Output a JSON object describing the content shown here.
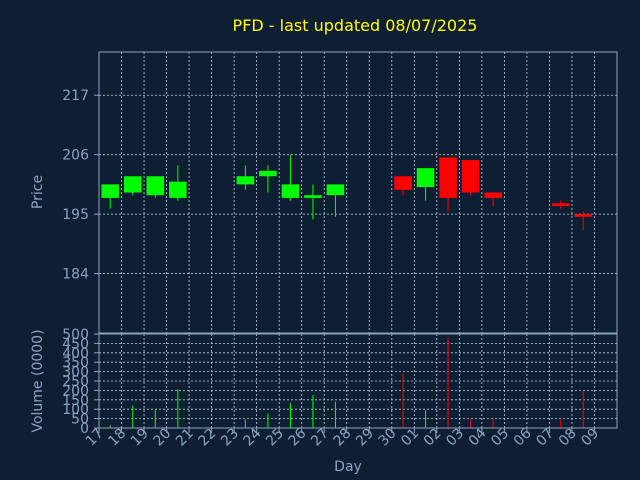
{
  "title": "PFD - last updated 08/07/2025",
  "colors": {
    "background": "#0f1f33",
    "axis": "#8ba3bf",
    "grid": "#c8d0da",
    "title": "#ffff00",
    "up": "#00ff00",
    "down": "#ff0000"
  },
  "chart_data": [
    {
      "type": "candlestick",
      "ylabel": "Price",
      "ylim": [
        173,
        225
      ],
      "yticks": [
        184,
        195,
        206,
        217
      ],
      "grid": true,
      "categories": [
        "17",
        "18",
        "19",
        "20",
        "21",
        "22",
        "23",
        "24",
        "25",
        "26",
        "27",
        "28",
        "29",
        "30",
        "01",
        "02",
        "03",
        "04",
        "05",
        "06",
        "07",
        "08",
        "09"
      ],
      "candles": [
        {
          "x": 0,
          "open": 198,
          "high": 200.5,
          "low": 196,
          "close": 200.5
        },
        {
          "x": 1,
          "open": 199,
          "high": 202,
          "low": 198.5,
          "close": 202
        },
        {
          "x": 2,
          "open": 198.5,
          "high": 202,
          "low": 198,
          "close": 202
        },
        {
          "x": 3,
          "open": 198,
          "high": 204,
          "low": 197.5,
          "close": 201
        },
        {
          "x": 6,
          "open": 200.5,
          "high": 204,
          "low": 199.5,
          "close": 202
        },
        {
          "x": 7,
          "open": 202,
          "high": 204,
          "low": 199,
          "close": 203
        },
        {
          "x": 8,
          "open": 198,
          "high": 206,
          "low": 197.5,
          "close": 200.5
        },
        {
          "x": 9,
          "open": 198,
          "high": 200.5,
          "low": 194,
          "close": 198.5
        },
        {
          "x": 10,
          "open": 198.5,
          "high": 200.5,
          "low": 194.5,
          "close": 200.5
        },
        {
          "x": 13,
          "open": 202,
          "high": 202,
          "low": 198.5,
          "close": 199.5
        },
        {
          "x": 14,
          "open": 200,
          "high": 203.5,
          "low": 197.5,
          "close": 203.5
        },
        {
          "x": 15,
          "open": 205.5,
          "high": 205.5,
          "low": 195.5,
          "close": 198
        },
        {
          "x": 16,
          "open": 205,
          "high": 205,
          "low": 198.5,
          "close": 199
        },
        {
          "x": 17,
          "open": 199,
          "high": 199,
          "low": 196.5,
          "close": 198
        },
        {
          "x": 20,
          "open": 197,
          "high": 197.5,
          "low": 196,
          "close": 196.5
        },
        {
          "x": 21,
          "open": 195,
          "high": 195.5,
          "low": 192,
          "close": 194.5
        }
      ]
    },
    {
      "type": "bar",
      "xlabel": "Day",
      "ylabel": "Volume (0000)",
      "ylim": [
        0,
        500
      ],
      "yticks": [
        0,
        50,
        100,
        150,
        200,
        250,
        300,
        350,
        400,
        450,
        500
      ],
      "grid": true,
      "categories": [
        "17",
        "18",
        "19",
        "20",
        "21",
        "22",
        "23",
        "24",
        "25",
        "26",
        "27",
        "28",
        "29",
        "30",
        "01",
        "02",
        "03",
        "04",
        "05",
        "06",
        "07",
        "08",
        "09"
      ],
      "bars": [
        {
          "x": 0,
          "value": 15,
          "direction": "up"
        },
        {
          "x": 1,
          "value": 120,
          "direction": "up"
        },
        {
          "x": 2,
          "value": 95,
          "direction": "up"
        },
        {
          "x": 3,
          "value": 205,
          "direction": "up"
        },
        {
          "x": 6,
          "value": 45,
          "direction": "up"
        },
        {
          "x": 7,
          "value": 75,
          "direction": "up"
        },
        {
          "x": 8,
          "value": 135,
          "direction": "up"
        },
        {
          "x": 9,
          "value": 175,
          "direction": "up"
        },
        {
          "x": 10,
          "value": 140,
          "direction": "up"
        },
        {
          "x": 13,
          "value": 290,
          "direction": "down"
        },
        {
          "x": 14,
          "value": 95,
          "direction": "up"
        },
        {
          "x": 15,
          "value": 480,
          "direction": "down"
        },
        {
          "x": 16,
          "value": 45,
          "direction": "down"
        },
        {
          "x": 17,
          "value": 45,
          "direction": "down"
        },
        {
          "x": 20,
          "value": 45,
          "direction": "down"
        },
        {
          "x": 21,
          "value": 195,
          "direction": "down"
        }
      ]
    }
  ]
}
